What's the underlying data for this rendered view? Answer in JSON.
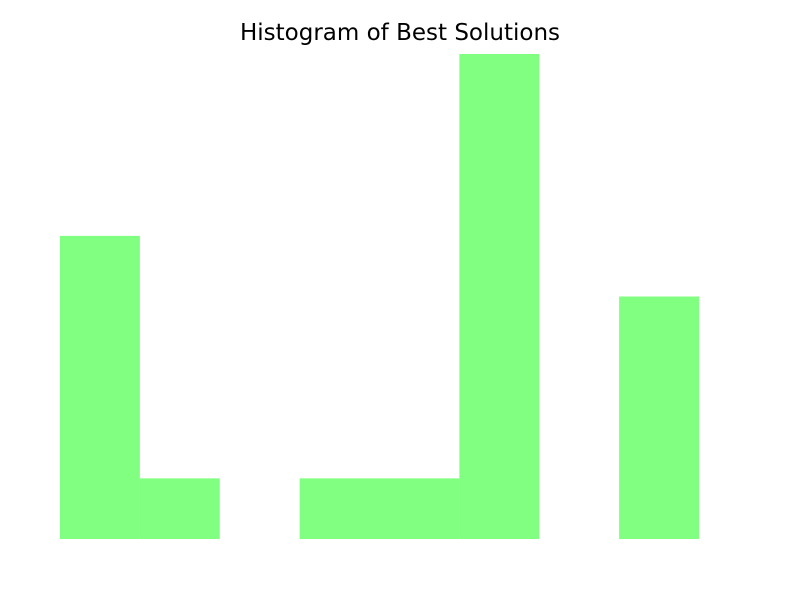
{
  "chart_data": {
    "type": "bar",
    "title": "Histogram of Best Solutions",
    "xlabel": "",
    "ylabel": "",
    "bins": 8,
    "values": [
      5,
      1,
      0,
      1,
      1,
      8,
      0,
      4
    ],
    "ylim": [
      0,
      8
    ],
    "bar_color": "#80ff80",
    "grid": false,
    "axes_visible": false
  }
}
